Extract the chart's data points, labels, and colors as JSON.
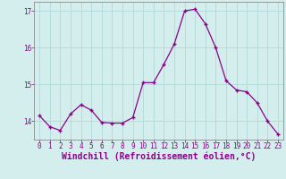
{
  "x": [
    0,
    1,
    2,
    3,
    4,
    5,
    6,
    7,
    8,
    9,
    10,
    11,
    12,
    13,
    14,
    15,
    16,
    17,
    18,
    19,
    20,
    21,
    22,
    23
  ],
  "y": [
    14.15,
    13.85,
    13.75,
    14.2,
    14.45,
    14.3,
    13.97,
    13.95,
    13.95,
    14.1,
    15.05,
    15.05,
    15.55,
    16.1,
    17.0,
    17.05,
    16.65,
    16.0,
    15.1,
    14.85,
    14.8,
    14.5,
    14.0,
    13.65
  ],
  "line_color": "#8b008b",
  "marker": "+",
  "marker_size": 3.5,
  "marker_lw": 1.0,
  "bg_color": "#d4eeed",
  "grid_color": "#afd8d8",
  "xlabel": "Windchill (Refroidissement éolien,°C)",
  "xlabel_fontsize": 7,
  "ylim": [
    13.5,
    17.25
  ],
  "xlim": [
    -0.5,
    23.5
  ],
  "yticks": [
    14,
    15,
    16,
    17
  ],
  "xticks": [
    0,
    1,
    2,
    3,
    4,
    5,
    6,
    7,
    8,
    9,
    10,
    11,
    12,
    13,
    14,
    15,
    16,
    17,
    18,
    19,
    20,
    21,
    22,
    23
  ],
  "tick_fontsize": 5.5,
  "line_width": 0.9,
  "spine_color": "#7a7a7a"
}
